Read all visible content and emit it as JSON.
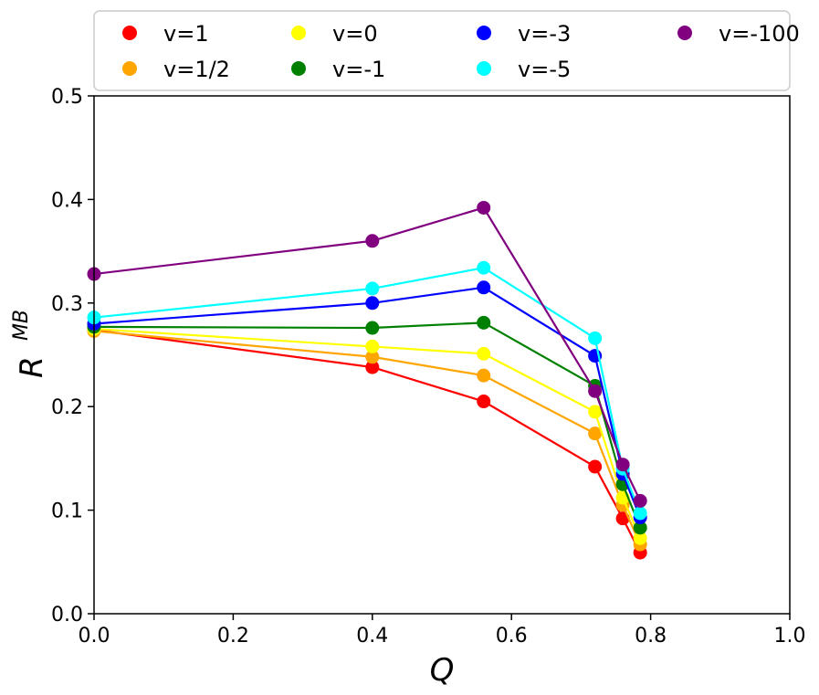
{
  "chart_data": {
    "type": "line",
    "xlabel": "Q",
    "ylabel": "R",
    "ylabel_superscript": "MB",
    "xlim": [
      0.0,
      1.0
    ],
    "ylim": [
      0.0,
      0.5
    ],
    "xticks": [
      "0.0",
      "0.2",
      "0.4",
      "0.6",
      "0.8",
      "1.0"
    ],
    "yticks": [
      "0.0",
      "0.1",
      "0.2",
      "0.3",
      "0.4",
      "0.5"
    ],
    "grid": false,
    "legend_location": "top, above axes",
    "x": [
      0.0,
      0.4,
      0.56,
      0.72,
      0.76,
      0.785
    ],
    "series": [
      {
        "name": "v=1",
        "color": "#ff0000",
        "values": [
          0.274,
          0.238,
          0.205,
          0.142,
          0.092,
          0.059
        ]
      },
      {
        "name": "v=1/2",
        "color": "#ffa500",
        "values": [
          0.273,
          0.248,
          0.23,
          0.174,
          0.105,
          0.067
        ]
      },
      {
        "name": "v=0",
        "color": "#ffff00",
        "values": [
          0.275,
          0.258,
          0.251,
          0.195,
          0.112,
          0.073
        ]
      },
      {
        "name": "v=-1",
        "color": "#008000",
        "values": [
          0.277,
          0.276,
          0.281,
          0.22,
          0.125,
          0.083
        ]
      },
      {
        "name": "v=-3",
        "color": "#0000ff",
        "values": [
          0.28,
          0.3,
          0.315,
          0.249,
          0.135,
          0.093
        ]
      },
      {
        "name": "v=-5",
        "color": "#00ffff",
        "values": [
          0.286,
          0.314,
          0.334,
          0.266,
          0.14,
          0.097
        ]
      },
      {
        "name": "v=-100",
        "color": "#800080",
        "values": [
          0.328,
          0.36,
          0.392,
          0.215,
          0.144,
          0.109
        ]
      }
    ],
    "legend_order": [
      "v=1",
      "v=1/2",
      "v=0",
      "v=-1",
      "v=-3",
      "v=-5",
      "v=-100"
    ]
  }
}
